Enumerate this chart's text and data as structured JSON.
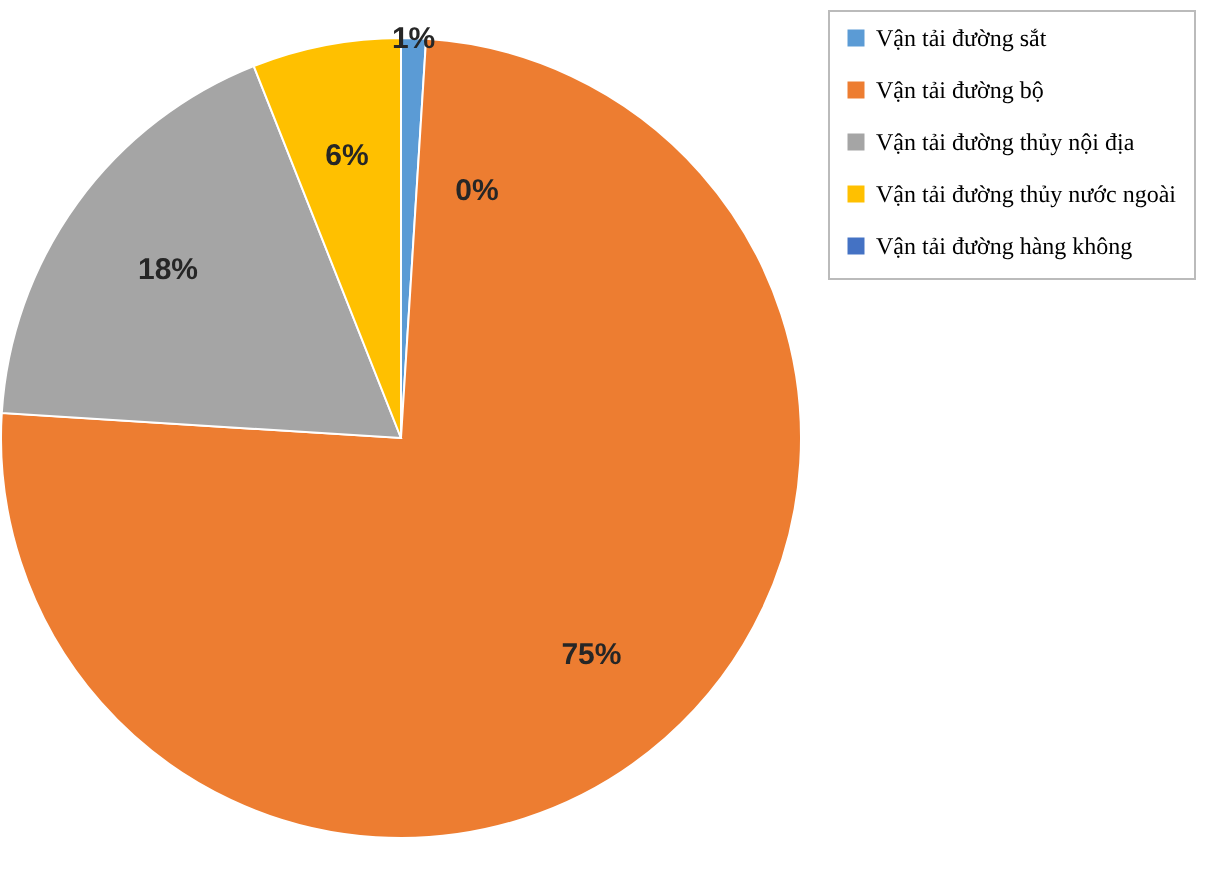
{
  "chart_data": {
    "type": "pie",
    "categories": [
      "Vận tải đường sắt",
      "Vận tải đường bộ",
      "Vận tải đường thủy nội địa",
      "Vận tải đường thủy nước ngoài",
      "Vận tải đường hàng không"
    ],
    "values": [
      1,
      75,
      18,
      6,
      0
    ],
    "colors": [
      "#5b9bd5",
      "#ed7d31",
      "#a5a5a5",
      "#ffc000",
      "#4472c4"
    ],
    "value_labels": [
      "1%",
      "75%",
      "18%",
      "6%",
      "0%"
    ],
    "legend": "right"
  }
}
